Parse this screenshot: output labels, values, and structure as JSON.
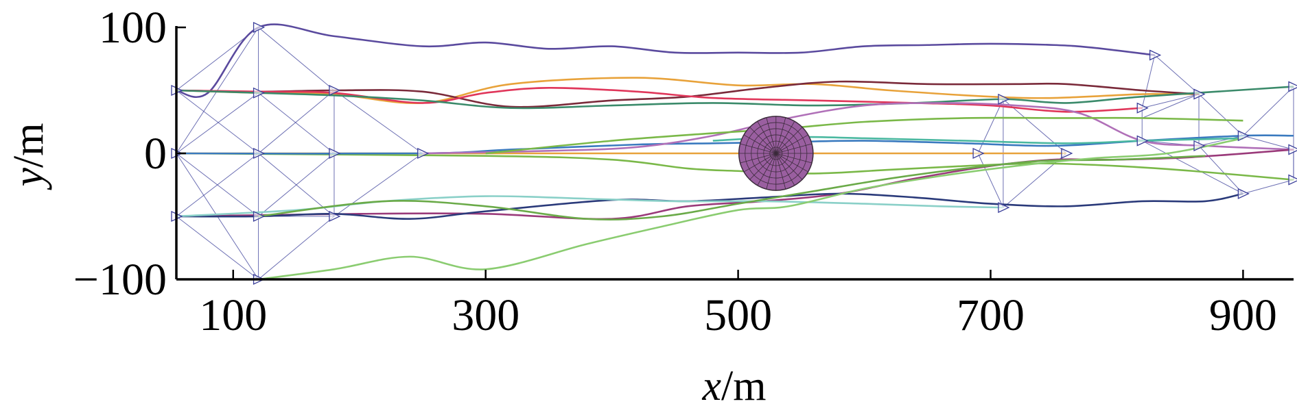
{
  "chart_data": {
    "type": "line",
    "xlabel": {
      "var": "x",
      "unit": "/m"
    },
    "ylabel": {
      "var": "y",
      "unit": "/m"
    },
    "xlim": [
      55,
      940
    ],
    "ylim": [
      -100,
      100
    ],
    "x_ticks": [
      100,
      300,
      500,
      700,
      900
    ],
    "y_ticks": [
      100,
      0,
      -100
    ],
    "tick_labels": {
      "x": [
        "100",
        "300",
        "500",
        "700",
        "900"
      ],
      "y": [
        "100",
        "0",
        "−100"
      ]
    },
    "grid": false,
    "legend": "none",
    "obstacle": {
      "x": 530,
      "y": 0,
      "r": 30,
      "color": "#9a5fa0"
    },
    "series": [
      {
        "color": "#5a4a9e",
        "points": [
          [
            55,
            50
          ],
          [
            80,
            48
          ],
          [
            120,
            100
          ],
          [
            180,
            93
          ],
          [
            250,
            85
          ],
          [
            300,
            88
          ],
          [
            350,
            83
          ],
          [
            400,
            85
          ],
          [
            450,
            80
          ],
          [
            500,
            80
          ],
          [
            550,
            80
          ],
          [
            600,
            85
          ],
          [
            650,
            86
          ],
          [
            700,
            87
          ],
          [
            750,
            86
          ],
          [
            780,
            84
          ],
          [
            830,
            78
          ]
        ]
      },
      {
        "color": "#e8a23a",
        "points": [
          [
            55,
            50
          ],
          [
            120,
            48
          ],
          [
            180,
            47
          ],
          [
            250,
            40
          ],
          [
            320,
            55
          ],
          [
            420,
            60
          ],
          [
            500,
            54
          ],
          [
            560,
            55
          ],
          [
            620,
            50
          ],
          [
            700,
            45
          ],
          [
            750,
            44
          ],
          [
            820,
            47
          ],
          [
            865,
            47
          ]
        ]
      },
      {
        "color": "#7a2a3a",
        "points": [
          [
            55,
            50
          ],
          [
            120,
            49
          ],
          [
            180,
            50
          ],
          [
            250,
            49
          ],
          [
            320,
            37
          ],
          [
            400,
            42
          ],
          [
            460,
            45
          ],
          [
            520,
            52
          ],
          [
            580,
            57
          ],
          [
            650,
            55
          ],
          [
            720,
            55
          ],
          [
            760,
            55
          ],
          [
            820,
            50
          ],
          [
            865,
            47
          ]
        ]
      },
      {
        "color": "#e0365a",
        "points": [
          [
            55,
            50
          ],
          [
            120,
            49
          ],
          [
            180,
            48
          ],
          [
            250,
            40
          ],
          [
            300,
            48
          ],
          [
            350,
            52
          ],
          [
            420,
            49
          ],
          [
            480,
            44
          ],
          [
            560,
            42
          ],
          [
            640,
            40
          ],
          [
            700,
            38
          ],
          [
            760,
            33
          ],
          [
            820,
            36
          ]
        ]
      },
      {
        "color": "#3a8a6a",
        "points": [
          [
            55,
            50
          ],
          [
            120,
            48
          ],
          [
            180,
            46
          ],
          [
            250,
            42
          ],
          [
            320,
            36
          ],
          [
            400,
            38
          ],
          [
            480,
            40
          ],
          [
            560,
            38
          ],
          [
            640,
            40
          ],
          [
            710,
            43
          ],
          [
            760,
            40
          ],
          [
            820,
            45
          ],
          [
            940,
            53
          ]
        ]
      },
      {
        "color": "#7ab848",
        "points": [
          [
            55,
            0
          ],
          [
            300,
            -2
          ],
          [
            400,
            -5
          ],
          [
            460,
            -12
          ],
          [
            500,
            -14
          ],
          [
            560,
            -16
          ],
          [
            620,
            -13
          ],
          [
            680,
            -10
          ],
          [
            740,
            -8
          ],
          [
            800,
            -10
          ],
          [
            860,
            -14
          ],
          [
            940,
            -21
          ]
        ]
      },
      {
        "color": "#e8a23a",
        "points": [
          [
            55,
            0
          ],
          [
            300,
            0
          ],
          [
            500,
            0
          ],
          [
            700,
            0
          ],
          [
            760,
            0
          ]
        ]
      },
      {
        "color": "#3a7abf",
        "points": [
          [
            55,
            0
          ],
          [
            250,
            0
          ],
          [
            320,
            3
          ],
          [
            420,
            7
          ],
          [
            480,
            8
          ],
          [
            540,
            9
          ],
          [
            600,
            10
          ],
          [
            680,
            8
          ],
          [
            750,
            6
          ],
          [
            820,
            10
          ],
          [
            900,
            14
          ],
          [
            940,
            14
          ]
        ]
      },
      {
        "color": "#b070b8",
        "points": [
          [
            250,
            0
          ],
          [
            350,
            2
          ],
          [
            420,
            5
          ],
          [
            480,
            14
          ],
          [
            540,
            28
          ],
          [
            600,
            38
          ],
          [
            660,
            40
          ],
          [
            720,
            38
          ],
          [
            770,
            32
          ],
          [
            820,
            10
          ],
          [
            870,
            6
          ],
          [
            940,
            3
          ]
        ]
      },
      {
        "color": "#7ab848",
        "points": [
          [
            300,
            0
          ],
          [
            400,
            10
          ],
          [
            480,
            16
          ],
          [
            540,
            20
          ],
          [
            600,
            25
          ],
          [
            680,
            28
          ],
          [
            760,
            28
          ],
          [
            820,
            28
          ],
          [
            900,
            26
          ]
        ]
      },
      {
        "color": "#4ab8a0",
        "points": [
          [
            480,
            10
          ],
          [
            540,
            13
          ],
          [
            600,
            12
          ],
          [
            680,
            10
          ],
          [
            760,
            8
          ],
          [
            820,
            10
          ],
          [
            900,
            12
          ]
        ]
      },
      {
        "color": "#9a3a7a",
        "points": [
          [
            55,
            -50
          ],
          [
            200,
            -48
          ],
          [
            300,
            -48
          ],
          [
            400,
            -52
          ],
          [
            460,
            -42
          ],
          [
            520,
            -38
          ],
          [
            580,
            -32
          ],
          [
            640,
            -20
          ],
          [
            700,
            -10
          ],
          [
            750,
            -5
          ],
          [
            800,
            -5
          ],
          [
            860,
            -3
          ],
          [
            940,
            3
          ]
        ]
      },
      {
        "color": "#2a3a7a",
        "points": [
          [
            55,
            -50
          ],
          [
            120,
            -50
          ],
          [
            180,
            -48
          ],
          [
            240,
            -52
          ],
          [
            300,
            -46
          ],
          [
            400,
            -37
          ],
          [
            460,
            -38
          ],
          [
            520,
            -35
          ],
          [
            580,
            -32
          ],
          [
            640,
            -35
          ],
          [
            700,
            -40
          ],
          [
            760,
            -42
          ],
          [
            820,
            -38
          ],
          [
            870,
            -38
          ],
          [
            900,
            -32
          ]
        ]
      },
      {
        "color": "#8ad0c8",
        "points": [
          [
            55,
            -50
          ],
          [
            150,
            -45
          ],
          [
            220,
            -38
          ],
          [
            300,
            -34
          ],
          [
            380,
            -36
          ],
          [
            450,
            -38
          ],
          [
            520,
            -38
          ],
          [
            600,
            -40
          ],
          [
            660,
            -42
          ],
          [
            710,
            -43
          ]
        ]
      },
      {
        "color": "#6aaa48",
        "points": [
          [
            120,
            -50
          ],
          [
            220,
            -38
          ],
          [
            300,
            -42
          ],
          [
            380,
            -52
          ],
          [
            440,
            -50
          ],
          [
            500,
            -40
          ],
          [
            560,
            -30
          ],
          [
            620,
            -20
          ],
          [
            680,
            -12
          ],
          [
            740,
            -6
          ],
          [
            800,
            -5
          ],
          [
            870,
            -2
          ]
        ]
      },
      {
        "color": "#8acc70",
        "points": [
          [
            120,
            -100
          ],
          [
            180,
            -92
          ],
          [
            240,
            -82
          ],
          [
            300,
            -92
          ],
          [
            380,
            -72
          ],
          [
            440,
            -58
          ],
          [
            500,
            -45
          ],
          [
            540,
            -42
          ],
          [
            600,
            -28
          ],
          [
            660,
            -18
          ],
          [
            720,
            -10
          ],
          [
            780,
            -4
          ],
          [
            840,
            0
          ],
          [
            900,
            12
          ]
        ]
      }
    ],
    "formation_links": [
      [
        [
          55,
          50
        ],
        [
          120,
          100
        ]
      ],
      [
        [
          55,
          50
        ],
        [
          120,
          48
        ]
      ],
      [
        [
          55,
          50
        ],
        [
          120,
          0
        ]
      ],
      [
        [
          55,
          0
        ],
        [
          120,
          100
        ]
      ],
      [
        [
          55,
          0
        ],
        [
          120,
          48
        ]
      ],
      [
        [
          55,
          0
        ],
        [
          120,
          -50
        ]
      ],
      [
        [
          55,
          -50
        ],
        [
          120,
          0
        ]
      ],
      [
        [
          55,
          -50
        ],
        [
          120,
          -100
        ]
      ],
      [
        [
          55,
          -50
        ],
        [
          120,
          -50
        ]
      ],
      [
        [
          55,
          0
        ],
        [
          120,
          -100
        ]
      ],
      [
        [
          120,
          100
        ],
        [
          180,
          50
        ]
      ],
      [
        [
          120,
          48
        ],
        [
          180,
          50
        ]
      ],
      [
        [
          120,
          48
        ],
        [
          180,
          0
        ]
      ],
      [
        [
          120,
          0
        ],
        [
          180,
          50
        ]
      ],
      [
        [
          120,
          0
        ],
        [
          180,
          -50
        ]
      ],
      [
        [
          120,
          -50
        ],
        [
          180,
          0
        ]
      ],
      [
        [
          120,
          -100
        ],
        [
          180,
          -50
        ]
      ],
      [
        [
          120,
          -50
        ],
        [
          180,
          -50
        ]
      ],
      [
        [
          120,
          100
        ],
        [
          120,
          -100
        ]
      ],
      [
        [
          180,
          50
        ],
        [
          180,
          -50
        ]
      ],
      [
        [
          180,
          50
        ],
        [
          250,
          0
        ]
      ],
      [
        [
          180,
          -50
        ],
        [
          250,
          0
        ]
      ],
      [
        [
          690,
          0
        ],
        [
          710,
          43
        ]
      ],
      [
        [
          690,
          0
        ],
        [
          710,
          -43
        ]
      ],
      [
        [
          710,
          43
        ],
        [
          760,
          0
        ]
      ],
      [
        [
          710,
          -43
        ],
        [
          760,
          0
        ]
      ],
      [
        [
          710,
          43
        ],
        [
          710,
          -43
        ]
      ],
      [
        [
          690,
          0
        ],
        [
          760,
          0
        ]
      ],
      [
        [
          830,
          78
        ],
        [
          820,
          36
        ]
      ],
      [
        [
          830,
          78
        ],
        [
          865,
          47
        ]
      ],
      [
        [
          820,
          36
        ],
        [
          865,
          47
        ]
      ],
      [
        [
          820,
          36
        ],
        [
          820,
          10
        ]
      ],
      [
        [
          820,
          10
        ],
        [
          865,
          6
        ]
      ],
      [
        [
          865,
          47
        ],
        [
          900,
          14
        ]
      ],
      [
        [
          865,
          6
        ],
        [
          900,
          14
        ]
      ],
      [
        [
          865,
          6
        ],
        [
          900,
          -32
        ]
      ],
      [
        [
          900,
          14
        ],
        [
          940,
          53
        ]
      ],
      [
        [
          900,
          14
        ],
        [
          940,
          3
        ]
      ],
      [
        [
          940,
          53
        ],
        [
          940,
          -21
        ]
      ],
      [
        [
          940,
          3
        ],
        [
          940,
          -21
        ]
      ],
      [
        [
          900,
          -32
        ],
        [
          940,
          -21
        ]
      ],
      [
        [
          820,
          10
        ],
        [
          900,
          -32
        ]
      ],
      [
        [
          865,
          47
        ],
        [
          865,
          6
        ]
      ],
      [
        [
          820,
          28
        ],
        [
          865,
          47
        ]
      ]
    ],
    "markers": [
      [
        55,
        50
      ],
      [
        55,
        0
      ],
      [
        55,
        -50
      ],
      [
        120,
        100
      ],
      [
        120,
        48
      ],
      [
        120,
        0
      ],
      [
        120,
        -50
      ],
      [
        120,
        -100
      ],
      [
        180,
        50
      ],
      [
        180,
        0
      ],
      [
        180,
        -50
      ],
      [
        250,
        0
      ],
      [
        690,
        0
      ],
      [
        710,
        43
      ],
      [
        710,
        -43
      ],
      [
        760,
        0
      ],
      [
        830,
        78
      ],
      [
        820,
        36
      ],
      [
        865,
        47
      ],
      [
        820,
        10
      ],
      [
        865,
        6
      ],
      [
        900,
        14
      ],
      [
        900,
        -32
      ],
      [
        940,
        53
      ],
      [
        940,
        3
      ],
      [
        940,
        -21
      ]
    ]
  }
}
